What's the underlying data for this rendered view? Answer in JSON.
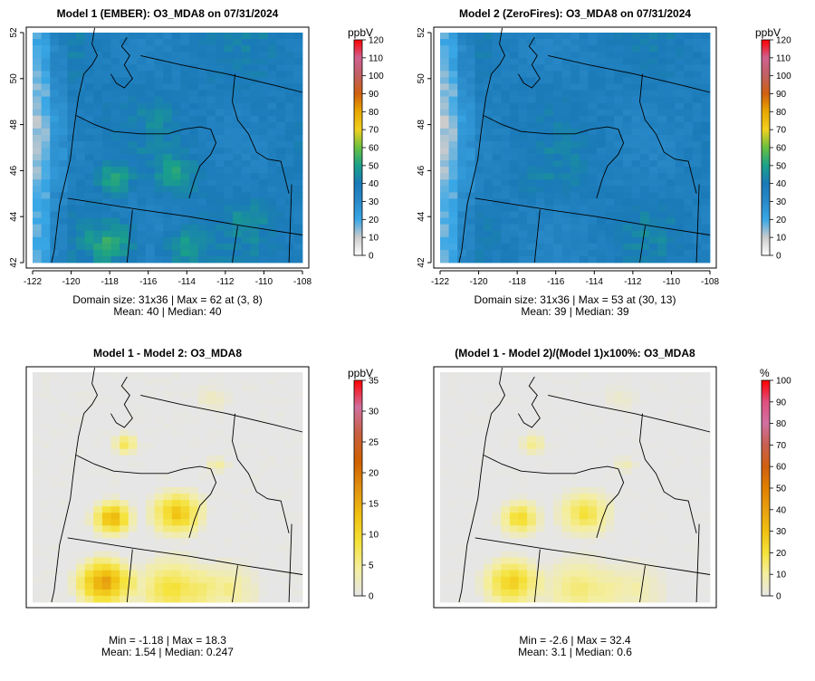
{
  "chart_data": [
    {
      "type": "heatmap",
      "title": "Model 1 (EMBER): O3_MDA8 on 07/31/2024",
      "x_ticks": [
        "-122",
        "-120",
        "-118",
        "-116",
        "-114",
        "-112",
        "-110",
        "-108"
      ],
      "x_tick_values": [
        -122,
        -120,
        -118,
        -116,
        -114,
        -112,
        -110,
        -108
      ],
      "y_ticks": [
        "42",
        "44",
        "46",
        "48",
        "50",
        "52"
      ],
      "y_tick_values": [
        42,
        44,
        46,
        48,
        50,
        52
      ],
      "xlim": [
        -122,
        -108
      ],
      "ylim": [
        42,
        52
      ],
      "colorbar": {
        "unit": "ppbV",
        "ticks": [
          "0",
          "10",
          "20",
          "30",
          "40",
          "50",
          "60",
          "70",
          "80",
          "90",
          "100",
          "110",
          "120"
        ],
        "min": 0,
        "max": 120,
        "stops": [
          "#ffffff",
          "#cccccc",
          "#39a7e6",
          "#2a8ac9",
          "#1a7ab8",
          "#1aa08a",
          "#68c040",
          "#f0d020",
          "#e8a800",
          "#d06010",
          "#c06060",
          "#d06090",
          "#ff0000"
        ]
      },
      "stats_line1": "Domain size: 31x36 | Max = 62 at (3, 8)",
      "stats_line2": "Mean: 40 |  Median: 40",
      "domain_size": "31x36",
      "max": 62,
      "max_at": "(3, 8)",
      "mean": 40,
      "median": 40
    },
    {
      "type": "heatmap",
      "title": "Model 2 (ZeroFires): O3_MDA8 on 07/31/2024",
      "x_ticks": [
        "-122",
        "-120",
        "-118",
        "-116",
        "-114",
        "-112",
        "-110",
        "-108"
      ],
      "x_tick_values": [
        -122,
        -120,
        -118,
        -116,
        -114,
        -112,
        -110,
        -108
      ],
      "y_ticks": [
        "42",
        "44",
        "46",
        "48",
        "50",
        "52"
      ],
      "y_tick_values": [
        42,
        44,
        46,
        48,
        50,
        52
      ],
      "xlim": [
        -122,
        -108
      ],
      "ylim": [
        42,
        52
      ],
      "colorbar": {
        "unit": "ppbV",
        "ticks": [
          "0",
          "10",
          "20",
          "30",
          "40",
          "50",
          "60",
          "70",
          "80",
          "90",
          "100",
          "110",
          "120"
        ],
        "min": 0,
        "max": 120,
        "stops": [
          "#ffffff",
          "#cccccc",
          "#39a7e6",
          "#2a8ac9",
          "#1a7ab8",
          "#1aa08a",
          "#68c040",
          "#f0d020",
          "#e8a800",
          "#d06010",
          "#c06060",
          "#d06090",
          "#ff0000"
        ]
      },
      "stats_line1": "Domain size: 31x36 | Max = 53 at (30, 13)",
      "stats_line2": "Mean: 39 |  Median: 39",
      "domain_size": "31x36",
      "max": 53,
      "max_at": "(30, 13)",
      "mean": 39,
      "median": 39
    },
    {
      "type": "heatmap",
      "title": "Model 1 - Model 2: O3_MDA8",
      "colorbar": {
        "unit": "ppbV",
        "ticks": [
          "0",
          "5",
          "10",
          "15",
          "20",
          "25",
          "30",
          "35"
        ],
        "min": 0,
        "max": 35,
        "stops": [
          "#e6e6e6",
          "#f4eea0",
          "#f5e23a",
          "#f0c010",
          "#e09010",
          "#d06000",
          "#c86040",
          "#d070a0",
          "#ff0000"
        ]
      },
      "stats_line1": "Min = -1.18 | Max = 18.3",
      "stats_line2": "Mean: 1.54 |  Median: 0.247",
      "min": -1.18,
      "max": 18.3,
      "mean": 1.54,
      "median": 0.247
    },
    {
      "type": "heatmap",
      "title": "(Model 1 - Model 2)/(Model 1)x100%: O3_MDA8",
      "colorbar": {
        "unit": "%",
        "ticks": [
          "0",
          "10",
          "20",
          "30",
          "40",
          "50",
          "60",
          "70",
          "80",
          "90",
          "100"
        ],
        "min": 0,
        "max": 100,
        "stops": [
          "#e6e6e6",
          "#f4eea0",
          "#f5e23a",
          "#f0c010",
          "#e8a010",
          "#e08000",
          "#d06010",
          "#c86050",
          "#d070a0",
          "#e05080",
          "#ff0000"
        ]
      },
      "stats_line1": "Min = -2.6 | Max = 32.4",
      "stats_line2": "Mean: 3.1 |  Median: 0.6",
      "min": -2.6,
      "max": 32.4,
      "mean": 3.1,
      "median": 0.6
    }
  ]
}
